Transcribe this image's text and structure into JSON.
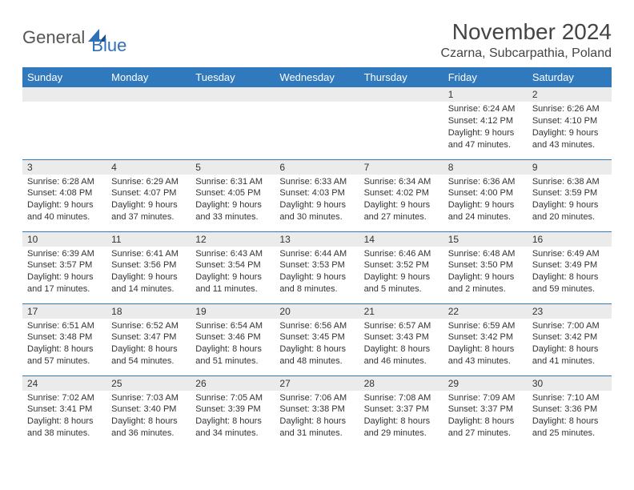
{
  "logo": {
    "general": "General",
    "blue": "Blue"
  },
  "title": "November 2024",
  "location": "Czarna, Subcarpathia, Poland",
  "colors": {
    "header_bg": "#3079bd",
    "header_fg": "#ffffff",
    "daynum_bg": "#ebebeb",
    "border": "#3079bd",
    "text": "#333333",
    "logo_gray": "#555555",
    "logo_blue": "#2f71b8"
  },
  "weekdays": [
    "Sunday",
    "Monday",
    "Tuesday",
    "Wednesday",
    "Thursday",
    "Friday",
    "Saturday"
  ],
  "layout": {
    "first_weekday_index": 5,
    "days_in_month": 30
  },
  "days": {
    "1": {
      "sunrise": "6:24 AM",
      "sunset": "4:12 PM",
      "daylight": "9 hours and 47 minutes."
    },
    "2": {
      "sunrise": "6:26 AM",
      "sunset": "4:10 PM",
      "daylight": "9 hours and 43 minutes."
    },
    "3": {
      "sunrise": "6:28 AM",
      "sunset": "4:08 PM",
      "daylight": "9 hours and 40 minutes."
    },
    "4": {
      "sunrise": "6:29 AM",
      "sunset": "4:07 PM",
      "daylight": "9 hours and 37 minutes."
    },
    "5": {
      "sunrise": "6:31 AM",
      "sunset": "4:05 PM",
      "daylight": "9 hours and 33 minutes."
    },
    "6": {
      "sunrise": "6:33 AM",
      "sunset": "4:03 PM",
      "daylight": "9 hours and 30 minutes."
    },
    "7": {
      "sunrise": "6:34 AM",
      "sunset": "4:02 PM",
      "daylight": "9 hours and 27 minutes."
    },
    "8": {
      "sunrise": "6:36 AM",
      "sunset": "4:00 PM",
      "daylight": "9 hours and 24 minutes."
    },
    "9": {
      "sunrise": "6:38 AM",
      "sunset": "3:59 PM",
      "daylight": "9 hours and 20 minutes."
    },
    "10": {
      "sunrise": "6:39 AM",
      "sunset": "3:57 PM",
      "daylight": "9 hours and 17 minutes."
    },
    "11": {
      "sunrise": "6:41 AM",
      "sunset": "3:56 PM",
      "daylight": "9 hours and 14 minutes."
    },
    "12": {
      "sunrise": "6:43 AM",
      "sunset": "3:54 PM",
      "daylight": "9 hours and 11 minutes."
    },
    "13": {
      "sunrise": "6:44 AM",
      "sunset": "3:53 PM",
      "daylight": "9 hours and 8 minutes."
    },
    "14": {
      "sunrise": "6:46 AM",
      "sunset": "3:52 PM",
      "daylight": "9 hours and 5 minutes."
    },
    "15": {
      "sunrise": "6:48 AM",
      "sunset": "3:50 PM",
      "daylight": "9 hours and 2 minutes."
    },
    "16": {
      "sunrise": "6:49 AM",
      "sunset": "3:49 PM",
      "daylight": "8 hours and 59 minutes."
    },
    "17": {
      "sunrise": "6:51 AM",
      "sunset": "3:48 PM",
      "daylight": "8 hours and 57 minutes."
    },
    "18": {
      "sunrise": "6:52 AM",
      "sunset": "3:47 PM",
      "daylight": "8 hours and 54 minutes."
    },
    "19": {
      "sunrise": "6:54 AM",
      "sunset": "3:46 PM",
      "daylight": "8 hours and 51 minutes."
    },
    "20": {
      "sunrise": "6:56 AM",
      "sunset": "3:45 PM",
      "daylight": "8 hours and 48 minutes."
    },
    "21": {
      "sunrise": "6:57 AM",
      "sunset": "3:43 PM",
      "daylight": "8 hours and 46 minutes."
    },
    "22": {
      "sunrise": "6:59 AM",
      "sunset": "3:42 PM",
      "daylight": "8 hours and 43 minutes."
    },
    "23": {
      "sunrise": "7:00 AM",
      "sunset": "3:42 PM",
      "daylight": "8 hours and 41 minutes."
    },
    "24": {
      "sunrise": "7:02 AM",
      "sunset": "3:41 PM",
      "daylight": "8 hours and 38 minutes."
    },
    "25": {
      "sunrise": "7:03 AM",
      "sunset": "3:40 PM",
      "daylight": "8 hours and 36 minutes."
    },
    "26": {
      "sunrise": "7:05 AM",
      "sunset": "3:39 PM",
      "daylight": "8 hours and 34 minutes."
    },
    "27": {
      "sunrise": "7:06 AM",
      "sunset": "3:38 PM",
      "daylight": "8 hours and 31 minutes."
    },
    "28": {
      "sunrise": "7:08 AM",
      "sunset": "3:37 PM",
      "daylight": "8 hours and 29 minutes."
    },
    "29": {
      "sunrise": "7:09 AM",
      "sunset": "3:37 PM",
      "daylight": "8 hours and 27 minutes."
    },
    "30": {
      "sunrise": "7:10 AM",
      "sunset": "3:36 PM",
      "daylight": "8 hours and 25 minutes."
    }
  },
  "labels": {
    "sunrise": "Sunrise: ",
    "sunset": "Sunset: ",
    "daylight": "Daylight: "
  }
}
